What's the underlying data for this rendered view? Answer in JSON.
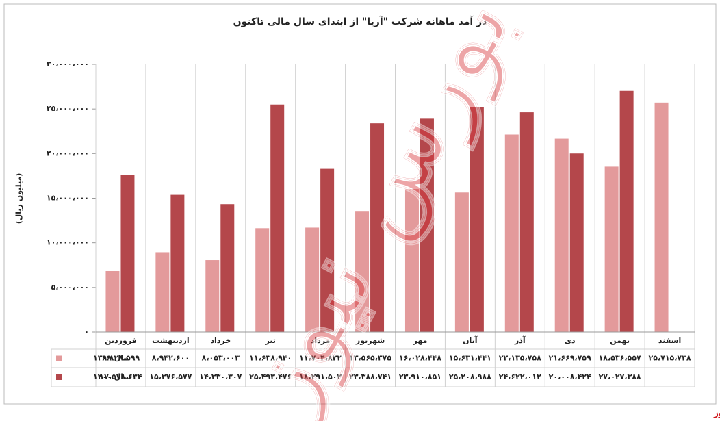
{
  "chart_data": {
    "type": "bar",
    "title": "در آمد ماهانه شرکت \"آریا\" از ابتدای سال مالی تاکنون",
    "y_label": "(میلیون ریال)",
    "watermark": "بورس نیوز",
    "source": "بورس نیوز",
    "categories": [
      "فروردین",
      "اردیبهشت",
      "خرداد",
      "تیر",
      "مرداد",
      "شهریور",
      "مهر",
      "آبان",
      "آذر",
      "دی",
      "بهمن",
      "اسفند"
    ],
    "series": [
      {
        "name": "سال ۱۳۹۹",
        "color": "#e39a9b",
        "values": [
          6829599,
          8942600,
          8053003,
          11638940,
          11704822,
          13565375,
          16028448,
          15631441,
          22135758,
          21669759,
          18536557,
          25715738
        ],
        "value_labels": [
          "۶،۸۲۹،۵۹۹",
          "۸،۹۴۲،۶۰۰",
          "۸،۰۵۳،۰۰۳",
          "۱۱،۶۳۸،۹۴۰",
          "۱۱،۷۰۴،۸۲۲",
          "۱۳،۵۶۵،۳۷۵",
          "۱۶،۰۲۸،۴۴۸",
          "۱۵،۶۳۱،۴۴۱",
          "۲۲،۱۳۵،۷۵۸",
          "۲۱،۶۶۹،۷۵۹",
          "۱۸،۵۳۶،۵۵۷",
          "۲۵،۷۱۵،۷۳۸"
        ]
      },
      {
        "name": "سال ۱۴۰۰",
        "color": "#b4474b",
        "values": [
          17578634,
          15376577,
          14330307,
          25493476,
          18291502,
          23388741,
          23910851,
          25208988,
          24622012,
          20008424,
          27027388,
          null
        ],
        "value_labels": [
          "۱۷،۵۷۸،۶۳۴",
          "۱۵،۳۷۶،۵۷۷",
          "۱۴،۳۳۰،۳۰۷",
          "۲۵،۴۹۳،۴۷۶",
          "۱۸،۲۹۱،۵۰۲",
          "۲۳،۳۸۸،۷۴۱",
          "۲۳،۹۱۰،۸۵۱",
          "۲۵،۲۰۸،۹۸۸",
          "۲۴،۶۲۲،۰۱۲",
          "۲۰،۰۰۸،۴۲۴",
          "۲۷،۰۲۷،۳۸۸",
          null
        ]
      }
    ],
    "ylim": [
      0,
      30000000
    ],
    "yticks": [
      {
        "value": 0,
        "label": "۰"
      },
      {
        "value": 5000000,
        "label": "۵،۰۰۰،۰۰۰"
      },
      {
        "value": 10000000,
        "label": "۱۰،۰۰۰،۰۰۰"
      },
      {
        "value": 15000000,
        "label": "۱۵،۰۰۰،۰۰۰"
      },
      {
        "value": 20000000,
        "label": "۲۰،۰۰۰،۰۰۰"
      },
      {
        "value": 25000000,
        "label": "۲۵،۰۰۰،۰۰۰"
      },
      {
        "value": 30000000,
        "label": "۳۰،۰۰۰،۰۰۰"
      }
    ],
    "grid": false
  }
}
